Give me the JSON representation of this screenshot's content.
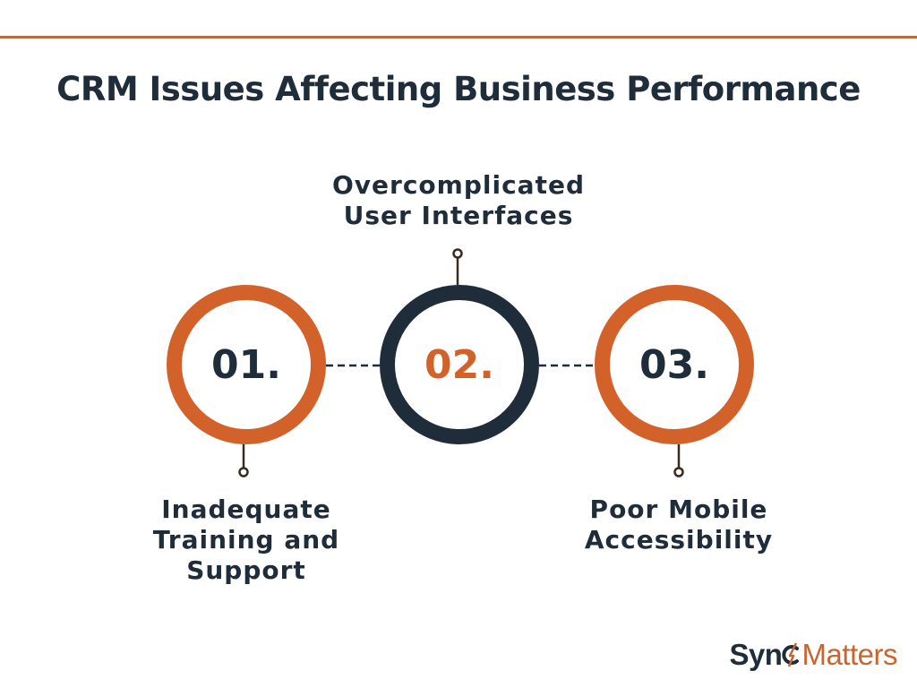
{
  "title": "CRM Issues Affecting Business Performance",
  "steps": [
    {
      "number": "01.",
      "label_lines": [
        "Inadequate",
        "Training and",
        "Support"
      ]
    },
    {
      "number": "02.",
      "label_lines": [
        "Overcomplicated",
        "User Interfaces"
      ]
    },
    {
      "number": "03.",
      "label_lines": [
        "Poor Mobile",
        "Accessibility"
      ]
    }
  ],
  "logo": {
    "part1": "Syn",
    "part2": "Matters",
    "dark_color": "#1f2d3b",
    "accent_color": "#c9652f"
  },
  "colors": {
    "orange": "#d2622a",
    "navy": "#1f2d3b",
    "rule": "#b86a3c"
  }
}
